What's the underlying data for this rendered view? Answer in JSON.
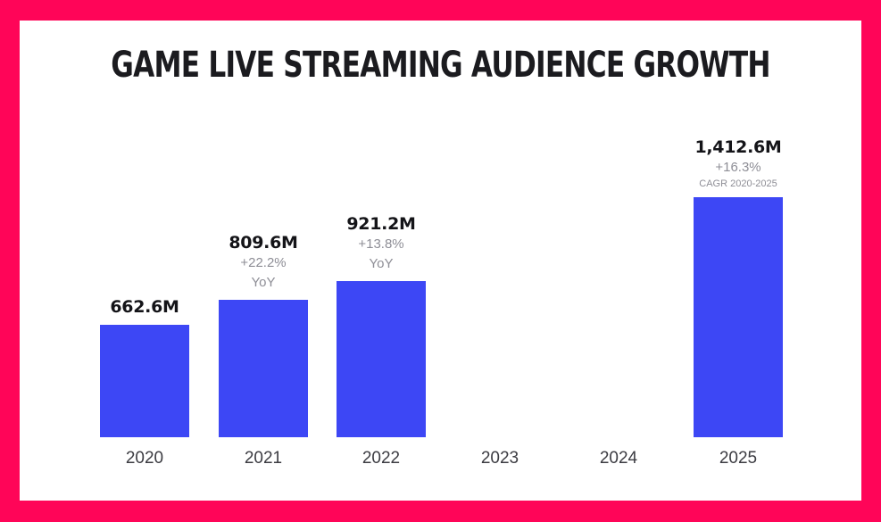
{
  "chart_data": {
    "type": "bar",
    "title": "GAME LIVE STREAMING AUDIENCE GROWTH",
    "xlabel": "",
    "ylabel": "",
    "unit": "M",
    "ylim": [
      0,
      1412.6
    ],
    "grid": false,
    "categories": [
      "2020",
      "2021",
      "2022",
      "2023",
      "2024",
      "2025"
    ],
    "values": [
      662.6,
      809.6,
      921.2,
      null,
      null,
      1412.6
    ],
    "data_labels": [
      "662.6M",
      "809.6M",
      "921.2M",
      "",
      "",
      "1,412.6M"
    ],
    "annotations": [
      {
        "category": "2020",
        "growth": "",
        "note": ""
      },
      {
        "category": "2021",
        "growth": "+22.2%",
        "note": "YoY"
      },
      {
        "category": "2022",
        "growth": "+13.8%",
        "note": "YoY"
      },
      {
        "category": "2023",
        "growth": "",
        "note": ""
      },
      {
        "category": "2024",
        "growth": "",
        "note": ""
      },
      {
        "category": "2025",
        "growth": "+16.3%",
        "note": "CAGR 2020-2025"
      }
    ],
    "colors": {
      "bar": "#3d47f5",
      "frame": "#ff0558",
      "background": "#ffffff"
    }
  }
}
